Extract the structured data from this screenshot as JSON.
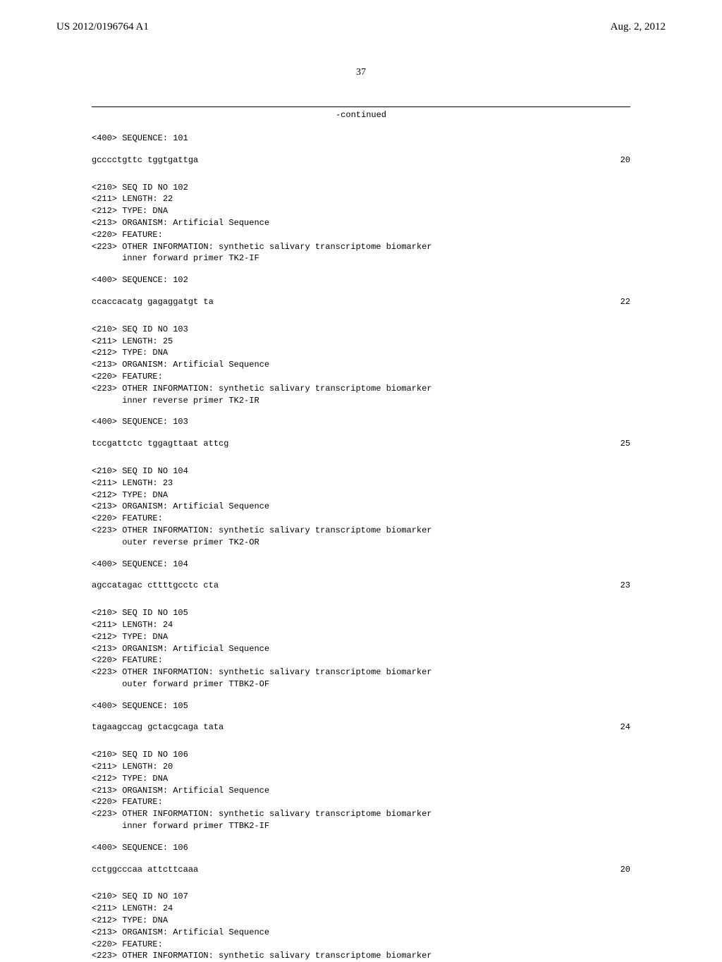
{
  "header": {
    "doc_number": "US 2012/0196764 A1",
    "date": "Aug. 2, 2012",
    "page_number": "37",
    "continued_label": "-continued"
  },
  "entries": [
    {
      "pre_seq_400": "<400> SEQUENCE: 101",
      "sequence": "gcccctgttc tggtgattga",
      "seq_pos": "20",
      "meta_lines": [
        "<210> SEQ ID NO 102",
        "<211> LENGTH: 22",
        "<212> TYPE: DNA",
        "<213> ORGANISM: Artificial Sequence",
        "<220> FEATURE:",
        "<223> OTHER INFORMATION: synthetic salivary transcriptome biomarker",
        "      inner forward primer TK2-IF"
      ],
      "seq_400": "<400> SEQUENCE: 102",
      "sequence2": "ccaccacatg gagaggatgt ta",
      "seq_pos2": "22"
    },
    {
      "meta_lines": [
        "<210> SEQ ID NO 103",
        "<211> LENGTH: 25",
        "<212> TYPE: DNA",
        "<213> ORGANISM: Artificial Sequence",
        "<220> FEATURE:",
        "<223> OTHER INFORMATION: synthetic salivary transcriptome biomarker",
        "      inner reverse primer TK2-IR"
      ],
      "seq_400": "<400> SEQUENCE: 103",
      "sequence2": "tccgattctc tggagttaat attcg",
      "seq_pos2": "25"
    },
    {
      "meta_lines": [
        "<210> SEQ ID NO 104",
        "<211> LENGTH: 23",
        "<212> TYPE: DNA",
        "<213> ORGANISM: Artificial Sequence",
        "<220> FEATURE:",
        "<223> OTHER INFORMATION: synthetic salivary transcriptome biomarker",
        "      outer reverse primer TK2-OR"
      ],
      "seq_400": "<400> SEQUENCE: 104",
      "sequence2": "agccatagac cttttgcctc cta",
      "seq_pos2": "23"
    },
    {
      "meta_lines": [
        "<210> SEQ ID NO 105",
        "<211> LENGTH: 24",
        "<212> TYPE: DNA",
        "<213> ORGANISM: Artificial Sequence",
        "<220> FEATURE:",
        "<223> OTHER INFORMATION: synthetic salivary transcriptome biomarker",
        "      outer forward primer TTBK2-OF"
      ],
      "seq_400": "<400> SEQUENCE: 105",
      "sequence2": "tagaagccag gctacgcaga tata",
      "seq_pos2": "24"
    },
    {
      "meta_lines": [
        "<210> SEQ ID NO 106",
        "<211> LENGTH: 20",
        "<212> TYPE: DNA",
        "<213> ORGANISM: Artificial Sequence",
        "<220> FEATURE:",
        "<223> OTHER INFORMATION: synthetic salivary transcriptome biomarker",
        "      inner forward primer TTBK2-IF"
      ],
      "seq_400": "<400> SEQUENCE: 106",
      "sequence2": "cctggcccaa attcttcaaa",
      "seq_pos2": "20"
    },
    {
      "meta_lines": [
        "<210> SEQ ID NO 107",
        "<211> LENGTH: 24",
        "<212> TYPE: DNA",
        "<213> ORGANISM: Artificial Sequence",
        "<220> FEATURE:",
        "<223> OTHER INFORMATION: synthetic salivary transcriptome biomarker"
      ]
    }
  ]
}
